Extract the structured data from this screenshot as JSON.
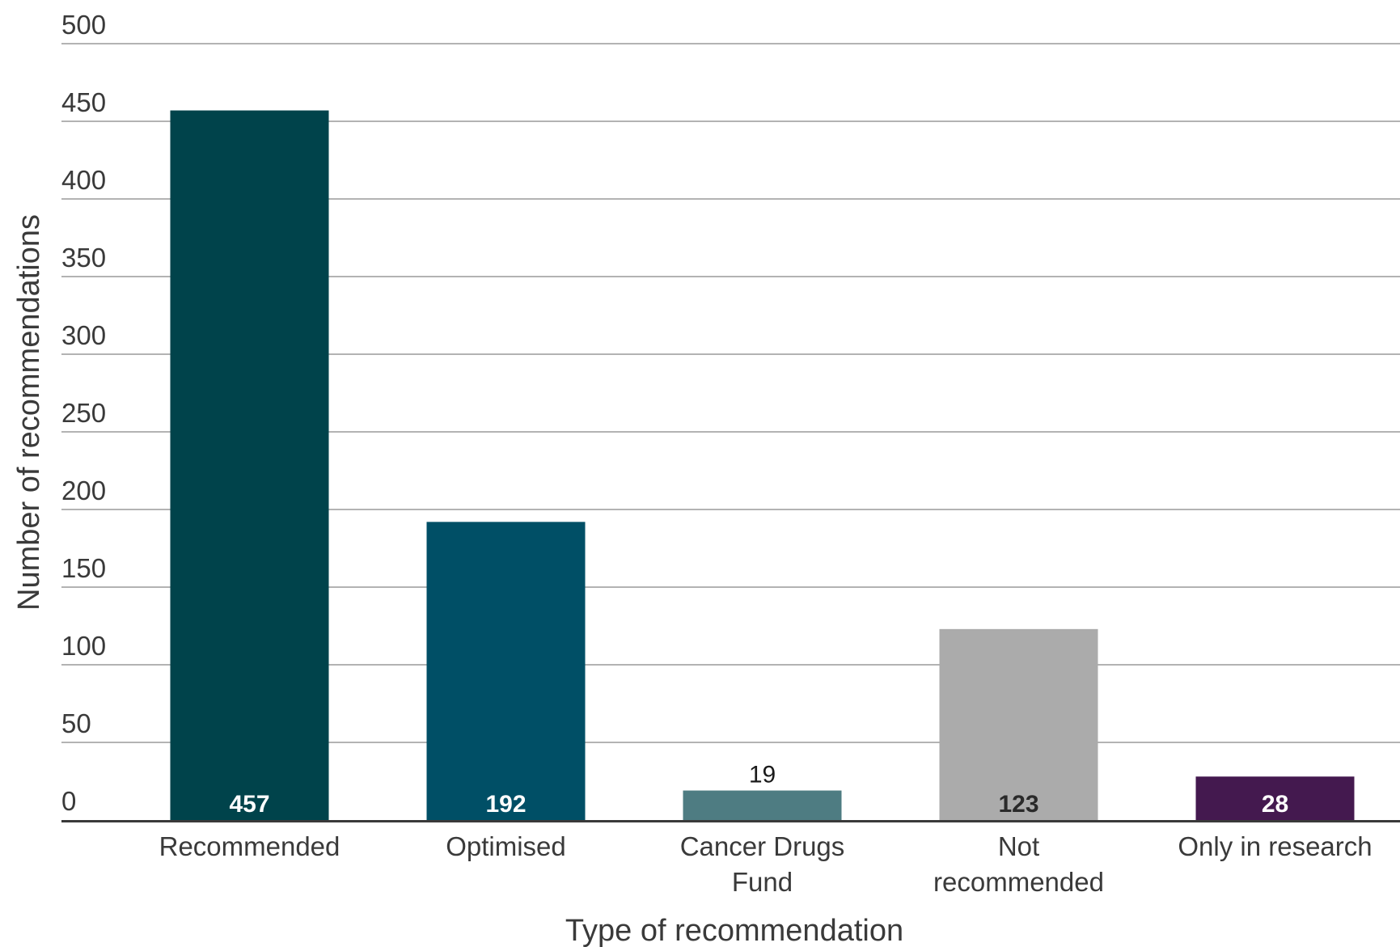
{
  "chart_data": {
    "type": "bar",
    "title": "",
    "xlabel": "Type of recommendation",
    "ylabel": "Number of recommendations",
    "ylim": [
      0,
      500
    ],
    "yticks": [
      0,
      50,
      100,
      150,
      200,
      250,
      300,
      350,
      400,
      450,
      500
    ],
    "grid": true,
    "legend": "none",
    "categories": [
      [
        "Recommended"
      ],
      [
        "Optimised"
      ],
      [
        "Cancer Drugs",
        "Fund"
      ],
      [
        "Not",
        "recommended"
      ],
      [
        "Only in research"
      ]
    ],
    "values": [
      457,
      192,
      19,
      123,
      28
    ],
    "bar_colors": [
      "#00434b",
      "#004f66",
      "#4e7c82",
      "#ababab",
      "#44194f"
    ],
    "data_label_colors": [
      "#ffffff",
      "#ffffff",
      "#1a1a1a",
      "#2a2a2a",
      "#ffffff"
    ],
    "data_label_position": [
      "inside",
      "inside",
      "outside",
      "inside",
      "inside"
    ],
    "grid_color": "#9a9a9a",
    "axis_color": "#3a3a3a"
  }
}
